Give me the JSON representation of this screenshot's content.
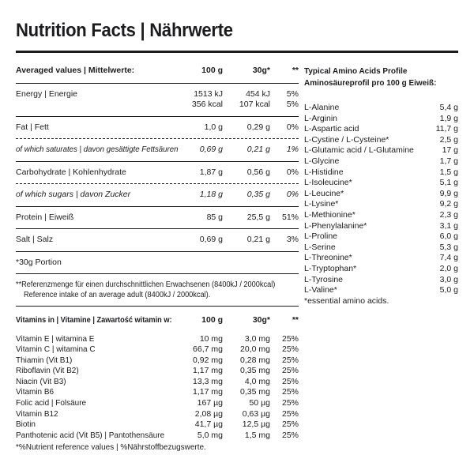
{
  "title": "Nutrition Facts | Nährwerte",
  "main_table": {
    "header": {
      "label": "Averaged values | Mittelwerte:",
      "col_100g": "100 g",
      "col_30g": "30g*",
      "col_ref": "**"
    },
    "energy": {
      "label": "Energy | Energie",
      "kj_100": "1513 kJ",
      "kj_30": "454 kJ",
      "kj_pct": "5%",
      "kcal_100": "356 kcal",
      "kcal_30": "107 kcal",
      "kcal_pct": "5%"
    },
    "rows": {
      "fat": {
        "label": "Fat | Fett",
        "v100": "1,0 g",
        "v30": "0,29 g",
        "pct": "0%"
      },
      "saturates": {
        "label": "of which saturates | davon gesättigte Fettsäuren",
        "v100": "0,69 g",
        "v30": "0,21 g",
        "pct": "1%"
      },
      "carbohydrate": {
        "label": "Carbohydrate | Kohlenhydrate",
        "v100": "1,87 g",
        "v30": "0,56 g",
        "pct": "0%"
      },
      "sugars": {
        "label": "of which sugars | davon Zucker",
        "v100": "1,18 g",
        "v30": "0,35 g",
        "pct": "0%"
      },
      "protein": {
        "label": "Protein | Eiweiß",
        "v100": "85 g",
        "v30": "25,5 g",
        "pct": "51%"
      },
      "salt": {
        "label": "Salt | Salz",
        "v100": "0,69 g",
        "v30": "0,21 g",
        "pct": "3%"
      }
    }
  },
  "notes": {
    "portion": "*30g Portion",
    "reference_de": "**Referenzmenge für einen durchschnittlichen Erwachsenen (8400kJ / 2000kcal)",
    "reference_en": "Reference intake of an average adult (8400kJ / 2000kcal)."
  },
  "vitamins": {
    "header": {
      "label": "Vitamins in | Vitamine | Zawartość witamin w:",
      "col_100g": "100 g",
      "col_30g": "30g*",
      "col_ref": "**"
    },
    "rows": [
      {
        "label": "Vitamin E | witamina E",
        "v100": "10 mg",
        "v30": "3,0 mg",
        "pct": "25%"
      },
      {
        "label": "Vitamin C | witamina C",
        "v100": "66,7 mg",
        "v30": "20,0 mg",
        "pct": "25%"
      },
      {
        "label": "Thiamin (Vit B1)",
        "v100": "0,92 mg",
        "v30": "0,28 mg",
        "pct": "25%"
      },
      {
        "label": "Riboflavin (Vit B2)",
        "v100": "1,17 mg",
        "v30": "0,35 mg",
        "pct": "25%"
      },
      {
        "label": "Niacin (Vit B3)",
        "v100": "13,3 mg",
        "v30": "4,0 mg",
        "pct": "25%"
      },
      {
        "label": "Vitamin B6",
        "v100": "1,17 mg",
        "v30": "0,35 mg",
        "pct": "25%"
      },
      {
        "label": "Folic acid | Folsäure",
        "v100": "167 µg",
        "v30": "50 µg",
        "pct": "25%"
      },
      {
        "label": "Vitamin B12",
        "v100": "2,08 µg",
        "v30": "0,63 µg",
        "pct": "25%"
      },
      {
        "label": "Biotin",
        "v100": "41,7 µg",
        "v30": "12,5 µg",
        "pct": "25%"
      },
      {
        "label": "Panthotenic acid (Vit B5) | Pantothensäure",
        "v100": "5,0 mg",
        "v30": "1,5 mg",
        "pct": "25%"
      }
    ],
    "footnote": "*%Nutrient reference values | %Nährstoffbezugswerte."
  },
  "amino_acids": {
    "title_en": "Typical Amino Acids Profile",
    "title_de": "Aminosäureprofil pro 100 g Eiweiß:",
    "rows": [
      {
        "label": "L-Alanine",
        "value": "5,4 g"
      },
      {
        "label": "L-Arginin",
        "value": "1,9 g"
      },
      {
        "label": "L-Aspartic acid",
        "value": "11,7 g"
      },
      {
        "label": "L-Cystine / L-Cysteine*",
        "value": "2,5 g"
      },
      {
        "label": "L-Glutamic acid / L-Glutamine",
        "value": "17 g"
      },
      {
        "label": "L-Glycine",
        "value": "1,7 g"
      },
      {
        "label": "L-Histidine",
        "value": "1,5 g"
      },
      {
        "label": "L-Isoleucine*",
        "value": "5,1 g"
      },
      {
        "label": "L-Leucine*",
        "value": "9,9 g"
      },
      {
        "label": "L-Lysine*",
        "value": "9,2 g"
      },
      {
        "label": "L-Methionine*",
        "value": "2,3 g"
      },
      {
        "label": "L-Phenylalanine*",
        "value": "3,1 g"
      },
      {
        "label": "L-Proline",
        "value": "6,0 g"
      },
      {
        "label": "L-Serine",
        "value": "5,3 g"
      },
      {
        "label": "L-Threonine*",
        "value": "7,4 g"
      },
      {
        "label": "L-Tryptophan*",
        "value": "2,0 g"
      },
      {
        "label": "L-Tyrosine",
        "value": "3,0 g"
      },
      {
        "label": "L-Valine*",
        "value": "5,0 g"
      }
    ],
    "footnote": "*essential amino acids."
  }
}
